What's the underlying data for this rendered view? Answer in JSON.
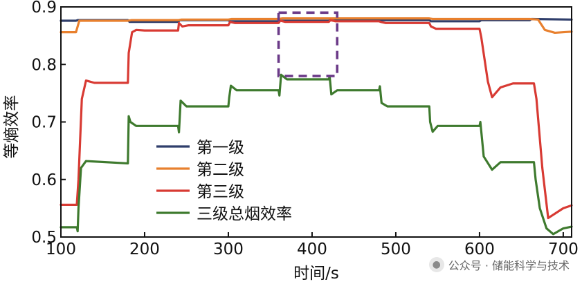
{
  "chart_data": {
    "type": "line",
    "xlabel": "时间/s",
    "ylabel": "等熵效率",
    "xlim": [
      100,
      710
    ],
    "ylim": [
      0.5,
      0.9
    ],
    "xticks": [
      100,
      200,
      300,
      400,
      500,
      600,
      700
    ],
    "yticks": [
      0.5,
      0.6,
      0.7,
      0.8,
      0.9
    ],
    "xtick_labels": [
      "100",
      "200",
      "300",
      "400",
      "500",
      "600",
      "700"
    ],
    "ytick_labels": [
      "0.5",
      "0.6",
      "0.7",
      "0.8",
      "0.9"
    ],
    "grid": false,
    "legend_position": "middle-left",
    "highlight_box": {
      "x_range": [
        360,
        430
      ],
      "y_range": [
        0.78,
        0.89
      ],
      "style": "dashed",
      "color": "#6b3a88"
    },
    "series": [
      {
        "name": "第一级",
        "color": "#2f3e6b",
        "x": [
          100,
          118,
          120,
          180,
          182,
          240,
          242,
          300,
          302,
          360,
          362,
          420,
          422,
          480,
          482,
          540,
          542,
          600,
          602,
          660,
          662,
          710
        ],
        "y": [
          0.876,
          0.876,
          0.877,
          0.877,
          0.874,
          0.874,
          0.877,
          0.877,
          0.875,
          0.875,
          0.876,
          0.876,
          0.878,
          0.878,
          0.877,
          0.877,
          0.875,
          0.875,
          0.877,
          0.877,
          0.879,
          0.878
        ]
      },
      {
        "name": "第二级",
        "color": "#e8802e",
        "x": [
          100,
          118,
          122,
          180,
          184,
          240,
          244,
          300,
          304,
          360,
          364,
          420,
          424,
          480,
          484,
          540,
          544,
          600,
          604,
          660,
          670,
          678,
          690,
          710
        ],
        "y": [
          0.856,
          0.856,
          0.876,
          0.876,
          0.877,
          0.877,
          0.878,
          0.878,
          0.879,
          0.879,
          0.88,
          0.88,
          0.88,
          0.88,
          0.88,
          0.88,
          0.879,
          0.879,
          0.879,
          0.879,
          0.878,
          0.86,
          0.855,
          0.857
        ]
      },
      {
        "name": "第三级",
        "color": "#d83a33",
        "x": [
          100,
          119,
          121,
          125,
          130,
          140,
          180,
          181,
          185,
          190,
          200,
          240,
          241,
          245,
          252,
          300,
          302,
          308,
          360,
          362,
          368,
          420,
          422,
          428,
          480,
          482,
          488,
          540,
          542,
          548,
          600,
          602,
          610,
          615,
          625,
          640,
          665,
          668,
          675,
          682,
          700,
          710
        ],
        "y": [
          0.556,
          0.556,
          0.6,
          0.74,
          0.772,
          0.768,
          0.768,
          0.82,
          0.856,
          0.86,
          0.859,
          0.859,
          0.872,
          0.866,
          0.868,
          0.868,
          0.874,
          0.872,
          0.872,
          0.876,
          0.874,
          0.874,
          0.877,
          0.875,
          0.875,
          0.874,
          0.872,
          0.872,
          0.866,
          0.862,
          0.862,
          0.848,
          0.77,
          0.743,
          0.76,
          0.767,
          0.767,
          0.74,
          0.62,
          0.533,
          0.55,
          0.555
        ]
      },
      {
        "name": "三级总烟效率",
        "color": "#3e7a2e",
        "x": [
          100,
          119,
          120,
          121,
          124,
          130,
          180,
          181,
          183,
          190,
          240,
          241,
          243,
          250,
          300,
          301,
          303,
          310,
          360,
          361,
          363,
          370,
          420,
          421,
          423,
          430,
          480,
          481,
          483,
          490,
          540,
          541,
          544,
          550,
          600,
          601,
          605,
          615,
          625,
          665,
          667,
          672,
          680,
          688,
          700,
          710
        ],
        "y": [
          0.517,
          0.517,
          0.51,
          0.55,
          0.62,
          0.632,
          0.628,
          0.71,
          0.7,
          0.693,
          0.693,
          0.682,
          0.737,
          0.727,
          0.727,
          0.742,
          0.763,
          0.755,
          0.755,
          0.746,
          0.782,
          0.774,
          0.774,
          0.779,
          0.748,
          0.755,
          0.755,
          0.762,
          0.733,
          0.727,
          0.727,
          0.7,
          0.683,
          0.693,
          0.693,
          0.7,
          0.64,
          0.617,
          0.63,
          0.63,
          0.6,
          0.55,
          0.515,
          0.505,
          0.515,
          0.518
        ]
      }
    ]
  },
  "watermark": {
    "icon": "wechat-icon",
    "text": "公众号 · 储能科学与技术"
  }
}
